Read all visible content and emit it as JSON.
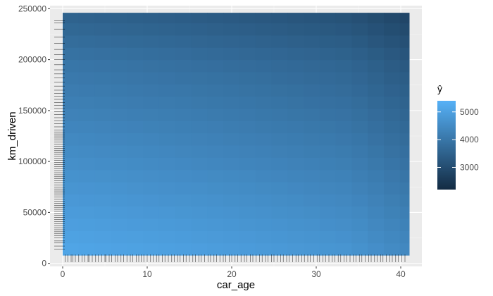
{
  "chart_data": {
    "type": "heatmap",
    "title": "",
    "xlabel": "car_age",
    "ylabel": "km_driven",
    "xlim": [
      -1.5,
      42.5
    ],
    "ylim": [
      -3000,
      253000
    ],
    "x_ticks": [
      0,
      10,
      20,
      30,
      40
    ],
    "y_ticks": [
      0,
      50000,
      100000,
      150000,
      200000,
      250000
    ],
    "grid": true,
    "x_bins": [
      0.0,
      1.9,
      3.8,
      5.7,
      7.6,
      9.5,
      11.4,
      13.3,
      15.2,
      17.1,
      19.0,
      20.9,
      22.8,
      24.7,
      26.6,
      28.5,
      30.4,
      32.3,
      34.2,
      36.1,
      38.0,
      39.9,
      41.0
    ],
    "y_bins": [
      8000,
      20000,
      32000,
      44000,
      56000,
      68000,
      80000,
      92000,
      104000,
      116000,
      128000,
      140000,
      152000,
      164000,
      176000,
      188000,
      200000,
      212000,
      224000,
      236000,
      246000
    ],
    "legend": {
      "title": "ŷ",
      "ticks": [
        3000,
        4000,
        5000
      ],
      "range": [
        2200,
        5400
      ],
      "color_low": "#132B43",
      "color_high": "#56B1F7",
      "placement": "right"
    },
    "rug_x": [
      0.3,
      0.6,
      1.0,
      1.2,
      1.5,
      1.9,
      2.3,
      2.6,
      3.0,
      3.1,
      3.5,
      3.9,
      4.2,
      4.6,
      5.0,
      5.1,
      5.5,
      5.8,
      6.2,
      6.5,
      6.9,
      7.2,
      7.6,
      8.0,
      8.3,
      8.7,
      9.0,
      9.3,
      9.6,
      10.0,
      10.4,
      10.7,
      11.1,
      11.4,
      11.8,
      12.1,
      12.5,
      12.9,
      13.2,
      13.6,
      13.9,
      14.3,
      14.6,
      15.0,
      15.4,
      15.7,
      16.1,
      16.4,
      16.8,
      17.2,
      17.5,
      17.9,
      18.2,
      18.6,
      19.0,
      19.3,
      19.7,
      20.0,
      20.4,
      20.7,
      21.1,
      21.5,
      21.8,
      22.2,
      22.5,
      22.9,
      23.3,
      23.6,
      24.0,
      24.3,
      24.7,
      25.0,
      25.4,
      25.8,
      26.1,
      26.5,
      26.8,
      27.2,
      27.6,
      27.9,
      28.3,
      28.6,
      29.0,
      29.3,
      29.7,
      30.1,
      30.4,
      30.8,
      31.1,
      31.5,
      31.9,
      32.2,
      32.6,
      32.9,
      33.3,
      33.6,
      34.0,
      34.4,
      34.7,
      35.1,
      35.4,
      35.8,
      36.2,
      36.5,
      36.9,
      37.2,
      37.6,
      37.9,
      38.3,
      38.7,
      39.0,
      39.4,
      39.7,
      40.1,
      40.5
    ],
    "rug_y": [
      14000,
      17000,
      20000,
      22000,
      25000,
      27000,
      29000,
      31000,
      33000,
      35000,
      37000,
      39000,
      41000,
      43000,
      45000,
      47000,
      49000,
      51000,
      53000,
      55000,
      57000,
      59000,
      61000,
      63000,
      65000,
      67000,
      69000,
      71000,
      73000,
      75000,
      77000,
      79000,
      81000,
      83000,
      85000,
      87000,
      89000,
      91000,
      93000,
      95000,
      97000,
      99000,
      101000,
      103000,
      105000,
      107000,
      109000,
      111000,
      113000,
      115000,
      117000,
      119000,
      121000,
      123000,
      125000,
      127000,
      129000,
      131000,
      134000,
      137000,
      140000,
      143000,
      146000,
      149000,
      152000,
      155000,
      158000,
      161000,
      164000,
      167000,
      170000,
      174000,
      178000,
      182000,
      186000,
      190000,
      195000,
      200000,
      205000,
      210000,
      216000,
      222000,
      230000,
      236000,
      238000
    ]
  }
}
